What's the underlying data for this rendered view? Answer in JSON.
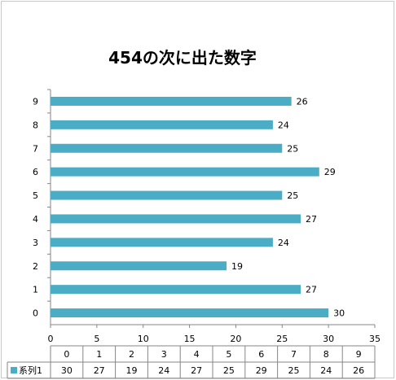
{
  "chart_data": {
    "type": "bar",
    "orientation": "horizontal",
    "title": "454の次に出た数字",
    "categories": [
      "0",
      "1",
      "2",
      "3",
      "4",
      "5",
      "6",
      "7",
      "8",
      "9"
    ],
    "series": [
      {
        "name": "系列1",
        "values": [
          30,
          27,
          19,
          24,
          27,
          25,
          29,
          25,
          24,
          26
        ]
      }
    ],
    "xlim": [
      0,
      35
    ],
    "x_ticks": [
      0,
      5,
      10,
      15,
      20,
      25,
      30,
      35
    ],
    "grid": false,
    "legend": "data-table-bottom",
    "data_table": true,
    "bar_color": "#4bacc6"
  }
}
